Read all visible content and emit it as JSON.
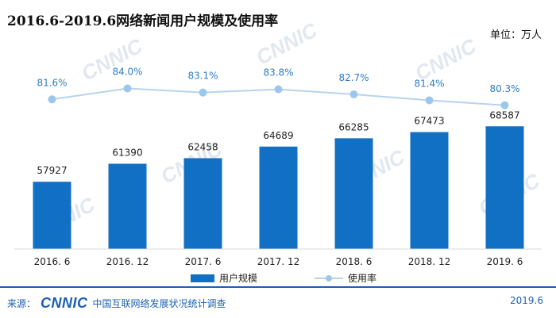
{
  "title": "2016.6-2019.6网络新闻用户规模及使用率",
  "unit": "单位：万人",
  "footer": {
    "source_label": "来源：",
    "logo": "CNNIC",
    "org": "中国互联网络发展状况统计调查",
    "date": "2019.6"
  },
  "watermark": "CNNIC",
  "colors": {
    "bar": "#1170c4",
    "line": "#b7d3ee",
    "marker": "#9cc7ec",
    "rate_label": "#2f7dc5",
    "accent": "#1a5fb4"
  },
  "chart_data": {
    "type": "bar",
    "categories": [
      "2016. 6",
      "2016. 12",
      "2017. 6",
      "2017. 12",
      "2018. 6",
      "2018. 12",
      "2019. 6"
    ],
    "series": [
      {
        "name": "用户规模",
        "type": "bar",
        "values": [
          57927,
          61390,
          62458,
          64689,
          66285,
          67473,
          68587
        ]
      },
      {
        "name": "使用率",
        "type": "line",
        "values": [
          81.6,
          84.0,
          83.1,
          83.8,
          82.7,
          81.4,
          80.3
        ],
        "labels": [
          "81.6%",
          "84.0%",
          "83.1%",
          "83.8%",
          "82.7%",
          "81.4%",
          "80.3%"
        ]
      }
    ],
    "legend": {
      "position": "bottom",
      "entries": [
        "用户规模",
        "使用率"
      ]
    },
    "grid": false
  }
}
